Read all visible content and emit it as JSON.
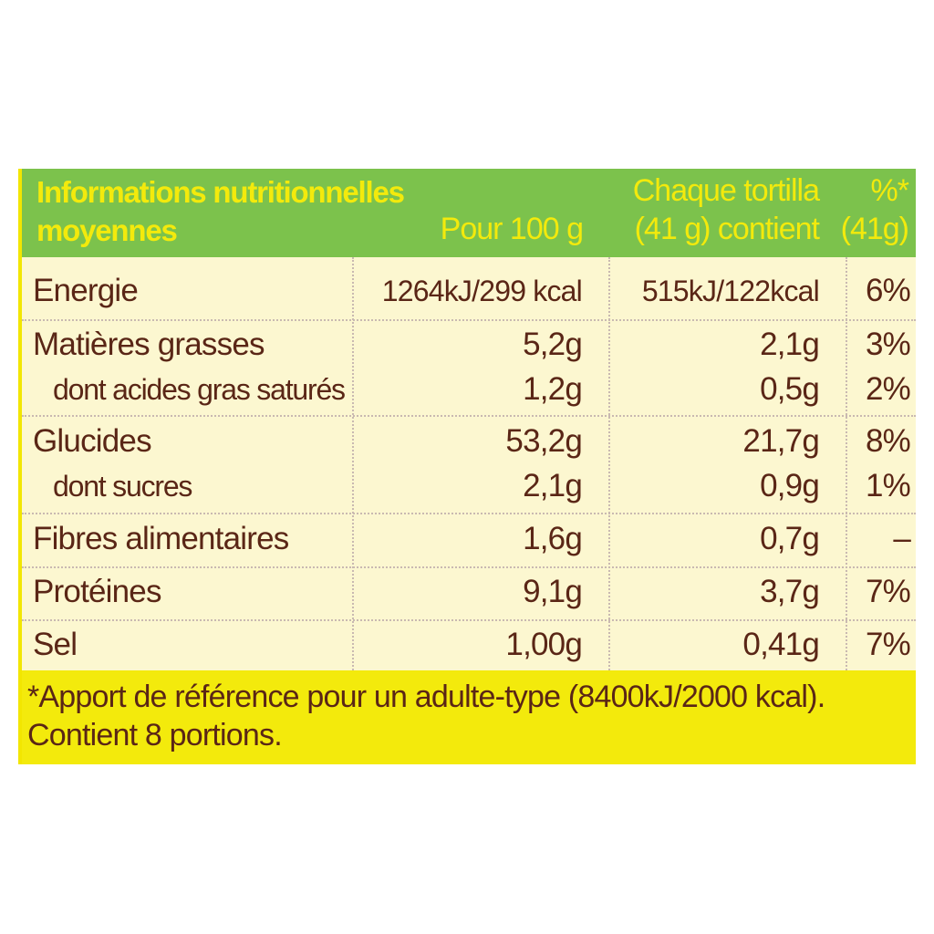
{
  "header": {
    "title_line1": "Informations nutritionnelles",
    "title_line2": "moyennes",
    "per100": "Pour 100 g",
    "portion_line1": "Chaque tortilla",
    "portion_line2": "(41 g) contient",
    "ri_line1": "%*",
    "ri_line2": "(41g)"
  },
  "rows": [
    {
      "name": "Energie",
      "per100": "1264kJ/299 kcal",
      "portion": "515kJ/122kcal",
      "ri": "6%"
    },
    {
      "name": "Matières grasses",
      "per100": "5,2g",
      "portion": "2,1g",
      "ri": "3%"
    },
    {
      "name": "dont acides gras saturés",
      "per100": "1,2g",
      "portion": "0,5g",
      "ri": "2%"
    },
    {
      "name": "Glucides",
      "per100": "53,2g",
      "portion": "21,7g",
      "ri": "8%"
    },
    {
      "name": "dont sucres",
      "per100": "2,1g",
      "portion": "0,9g",
      "ri": "1%"
    },
    {
      "name": "Fibres alimentaires",
      "per100": "1,6g",
      "portion": "0,7g",
      "ri": "–"
    },
    {
      "name": "Protéines",
      "per100": "9,1g",
      "portion": "3,7g",
      "ri": "7%"
    },
    {
      "name": "Sel",
      "per100": "1,00g",
      "portion": "0,41g",
      "ri": "7%"
    }
  ],
  "footer": {
    "line1": "*Apport de référence pour un adulte-type (8400kJ/2000 kcal).",
    "line2": "Contient 8 portions."
  },
  "colors": {
    "header_bg": "#7cc24c",
    "header_text": "#f3ea0c",
    "body_bg": "#fcf7d0",
    "body_text": "#5a2616",
    "footer_bg": "#f3ea0c"
  }
}
